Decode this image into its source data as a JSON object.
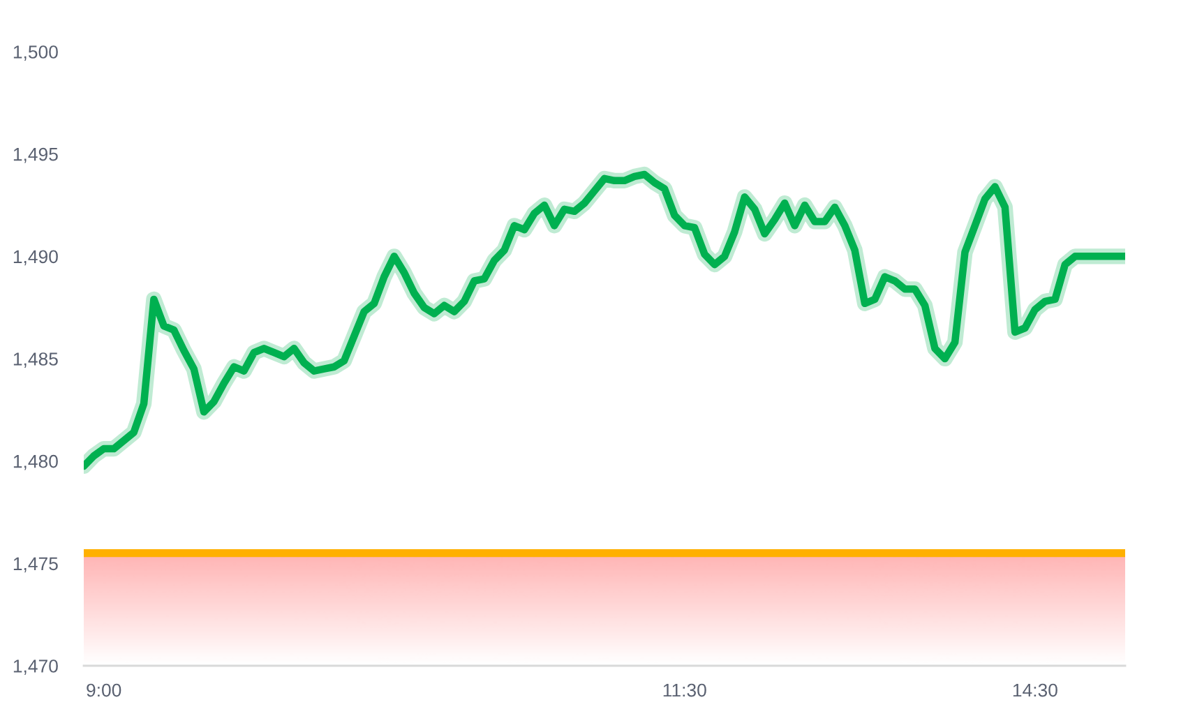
{
  "chart_data": {
    "type": "line",
    "categories": [
      null,
      null,
      "9:00",
      null,
      null,
      null,
      null,
      null,
      null,
      null,
      null,
      null,
      null,
      null,
      null,
      null,
      null,
      null,
      null,
      null,
      null,
      null,
      null,
      null,
      null,
      null,
      null,
      null,
      null,
      null,
      null,
      null,
      null,
      null,
      null,
      null,
      null,
      null,
      null,
      null,
      null,
      null,
      null,
      null,
      null,
      null,
      null,
      null,
      null,
      null,
      null,
      null,
      null,
      null,
      null,
      null,
      null,
      null,
      null,
      null,
      "11:30",
      null,
      null,
      null,
      null,
      null,
      null,
      null,
      null,
      null,
      null,
      null,
      null,
      null,
      null,
      null,
      null,
      null,
      null,
      null,
      null,
      null,
      null,
      null,
      null,
      null,
      null,
      null,
      null,
      null,
      null,
      null,
      null,
      null,
      null,
      "14:30",
      null,
      null,
      null,
      null,
      null,
      null,
      null,
      null,
      null
    ],
    "series": [
      {
        "color": "#00b050",
        "values": [
          1479.75,
          1480.25,
          1480.6,
          1480.6,
          1481.0,
          1481.4,
          1482.8,
          1487.9,
          1486.6,
          1486.4,
          1485.4,
          1484.5,
          1482.4,
          1482.9,
          1483.8,
          1484.6,
          1484.4,
          1485.3,
          1485.5,
          1485.3,
          1485.1,
          1485.5,
          1484.8,
          1484.4,
          1484.5,
          1484.6,
          1484.9,
          1486.1,
          1487.3,
          1487.7,
          1489.0,
          1490.0,
          1489.2,
          1488.2,
          1487.5,
          1487.2,
          1487.6,
          1487.3,
          1487.8,
          1488.8,
          1488.9,
          1489.8,
          1490.3,
          1491.5,
          1491.3,
          1492.1,
          1492.5,
          1491.5,
          1492.3,
          1492.2,
          1492.6,
          1493.2,
          1493.8,
          1493.7,
          1493.7,
          1493.9,
          1494.0,
          1493.6,
          1493.3,
          1492.0,
          1491.5,
          1491.4,
          1490.1,
          1489.6,
          1490.0,
          1491.2,
          1492.9,
          1492.3,
          1491.1,
          1491.8,
          1492.6,
          1491.5,
          1492.5,
          1491.7,
          1491.7,
          1492.4,
          1491.5,
          1490.3,
          1487.7,
          1487.9,
          1489.0,
          1488.8,
          1488.4,
          1488.4,
          1487.6,
          1485.5,
          1485.0,
          1485.8,
          1490.2,
          1491.5,
          1492.8,
          1493.4,
          1492.4,
          1486.3,
          1486.5,
          1487.4,
          1487.8,
          1487.9,
          1489.6,
          1490.0,
          1490.0,
          1490.0,
          1490.0,
          1490.0,
          1490.0
        ]
      }
    ],
    "ylim": [
      1470,
      1500
    ],
    "yticks": [
      {
        "value": 1470,
        "label": "1,470"
      },
      {
        "value": 1475,
        "label": "1,475"
      },
      {
        "value": 1480,
        "label": "1,480"
      },
      {
        "value": 1485,
        "label": "1,485"
      },
      {
        "value": 1490,
        "label": "1,490"
      },
      {
        "value": 1495,
        "label": "1,495"
      },
      {
        "value": 1500,
        "label": "1,500"
      }
    ],
    "ref_lines": [
      {
        "axis": "y",
        "value": 1475.5,
        "color": "#ffb000"
      }
    ],
    "bands": [
      {
        "axis": "y",
        "from": 1470,
        "to": 1475.5,
        "color": "#ffb3b3"
      }
    ],
    "line_style": "solid"
  }
}
